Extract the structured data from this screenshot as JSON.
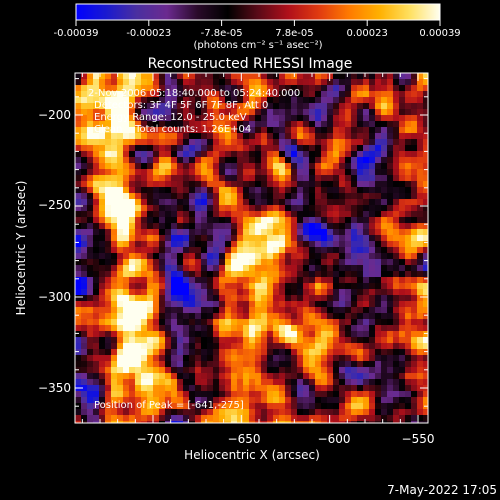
{
  "colorbar": {
    "tick_labels": [
      "-0.00039",
      "-0.00023",
      "-7.8e-05",
      "7.8e-05",
      "0.00023",
      "0.00039"
    ],
    "unit_label": "(photons cm⁻² s⁻¹ asec⁻²)",
    "gradient_colors": [
      "#0000ff",
      "#1a1ad0",
      "#4a2fa0",
      "#6b2a8f",
      "#2a0a2a",
      "#000000",
      "#5a0a18",
      "#b0101a",
      "#e03a10",
      "#ff7a00",
      "#ffb000",
      "#ffe060",
      "#fffff0"
    ]
  },
  "image": {
    "title": "Reconstructed RHESSI Image",
    "info_lines": [
      " 2-Nov-2006 05:18:40.000 to 05:24:40.000",
      "Detectors: 3F 4F 5F 6F 7F 8F, Att 0",
      "Energy Range: 12.0 - 25.0 keV",
      "Clean    Total counts: 1.26E+04"
    ],
    "peak_label": "Position of Peak = [-641,-275]",
    "xlabel": "Heliocentric X (arcsec)",
    "ylabel": "Heliocentric Y (arcsec)",
    "xticks": [
      "−700",
      "−650",
      "−600",
      "−550"
    ],
    "yticks": [
      "−200",
      "−250",
      "−300",
      "−350"
    ]
  },
  "footer": {
    "date_stamp": "7-May-2022 17:05"
  }
}
